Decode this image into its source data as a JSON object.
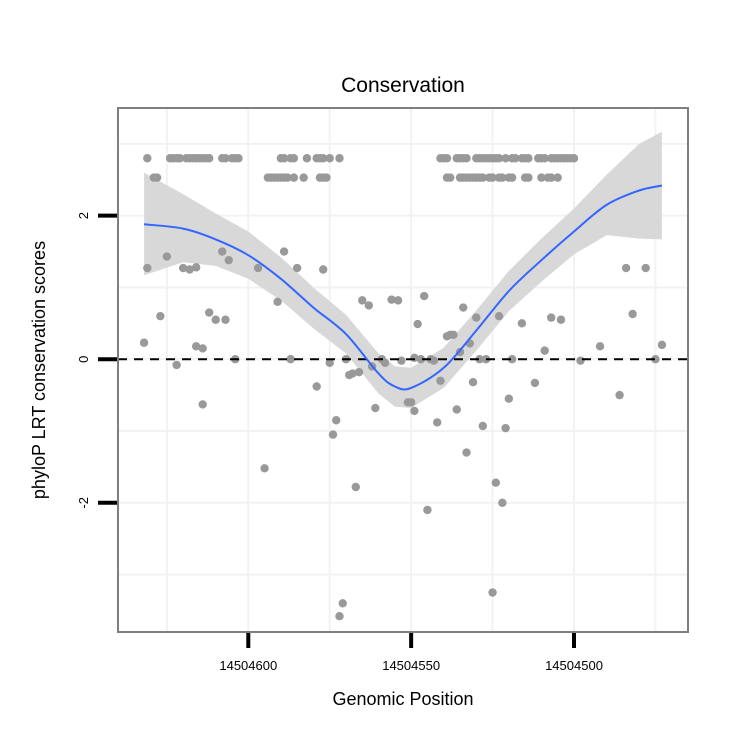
{
  "chart_data": {
    "type": "scatter",
    "title": "Conservation",
    "xlabel": "Genomic Position",
    "ylabel": "phyloP LRT conservation scores",
    "x_reversed": true,
    "xlim": [
      14504465,
      14504640
    ],
    "ylim": [
      -3.8,
      3.5
    ],
    "xticks": [
      14504600,
      14504550,
      14504500
    ],
    "xtick_labels": [
      "14504600",
      "14504550",
      "14504500"
    ],
    "yticks": [
      -2,
      0,
      2
    ],
    "ytick_labels": [
      "-2",
      "0",
      "2"
    ],
    "grid": true,
    "reference_line": {
      "y": 0,
      "style": "dashed",
      "color": "#000000"
    },
    "colors": {
      "points": "#999999",
      "smooth": "#3366ff",
      "ribbon": "#d6d6d6",
      "panel_border": "#7f7f7f",
      "grid": "#f2f2f2"
    },
    "points": [
      {
        "x": 14504631,
        "y": 2.8
      },
      {
        "x": 14504624,
        "y": 2.8
      },
      {
        "x": 14504623,
        "y": 2.8
      },
      {
        "x": 14504622,
        "y": 2.8
      },
      {
        "x": 14504621,
        "y": 2.8
      },
      {
        "x": 14504619,
        "y": 2.8
      },
      {
        "x": 14504618,
        "y": 2.8
      },
      {
        "x": 14504617,
        "y": 2.8
      },
      {
        "x": 14504616,
        "y": 2.8
      },
      {
        "x": 14504615,
        "y": 2.8
      },
      {
        "x": 14504614,
        "y": 2.8
      },
      {
        "x": 14504613,
        "y": 2.8
      },
      {
        "x": 14504612,
        "y": 2.8
      },
      {
        "x": 14504608,
        "y": 2.8
      },
      {
        "x": 14504607,
        "y": 2.8
      },
      {
        "x": 14504605,
        "y": 2.8
      },
      {
        "x": 14504604,
        "y": 2.8
      },
      {
        "x": 14504603,
        "y": 2.8
      },
      {
        "x": 14504590,
        "y": 2.8
      },
      {
        "x": 14504589,
        "y": 2.8
      },
      {
        "x": 14504587,
        "y": 2.8
      },
      {
        "x": 14504586,
        "y": 2.8
      },
      {
        "x": 14504582,
        "y": 2.8
      },
      {
        "x": 14504579,
        "y": 2.8
      },
      {
        "x": 14504578,
        "y": 2.8
      },
      {
        "x": 14504577,
        "y": 2.8
      },
      {
        "x": 14504575,
        "y": 2.8
      },
      {
        "x": 14504572,
        "y": 2.8
      },
      {
        "x": 14504629,
        "y": 2.53
      },
      {
        "x": 14504628,
        "y": 2.53
      },
      {
        "x": 14504594,
        "y": 2.53
      },
      {
        "x": 14504593,
        "y": 2.53
      },
      {
        "x": 14504592,
        "y": 2.53
      },
      {
        "x": 14504591,
        "y": 2.53
      },
      {
        "x": 14504590,
        "y": 2.53
      },
      {
        "x": 14504589,
        "y": 2.53
      },
      {
        "x": 14504588,
        "y": 2.53
      },
      {
        "x": 14504586,
        "y": 2.53
      },
      {
        "x": 14504583,
        "y": 2.53
      },
      {
        "x": 14504578,
        "y": 2.53
      },
      {
        "x": 14504577,
        "y": 2.53
      },
      {
        "x": 14504576,
        "y": 2.53
      },
      {
        "x": 14504541,
        "y": 2.8
      },
      {
        "x": 14504540,
        "y": 2.8
      },
      {
        "x": 14504539,
        "y": 2.8
      },
      {
        "x": 14504536,
        "y": 2.8
      },
      {
        "x": 14504535,
        "y": 2.8
      },
      {
        "x": 14504534,
        "y": 2.8
      },
      {
        "x": 14504533,
        "y": 2.8
      },
      {
        "x": 14504530,
        "y": 2.8
      },
      {
        "x": 14504529,
        "y": 2.8
      },
      {
        "x": 14504528,
        "y": 2.8
      },
      {
        "x": 14504527,
        "y": 2.8
      },
      {
        "x": 14504526,
        "y": 2.8
      },
      {
        "x": 14504525,
        "y": 2.8
      },
      {
        "x": 14504524,
        "y": 2.8
      },
      {
        "x": 14504523,
        "y": 2.8
      },
      {
        "x": 14504521,
        "y": 2.8
      },
      {
        "x": 14504519,
        "y": 2.8
      },
      {
        "x": 14504518,
        "y": 2.8
      },
      {
        "x": 14504516,
        "y": 2.8
      },
      {
        "x": 14504515,
        "y": 2.8
      },
      {
        "x": 14504514,
        "y": 2.8
      },
      {
        "x": 14504511,
        "y": 2.8
      },
      {
        "x": 14504510,
        "y": 2.8
      },
      {
        "x": 14504509,
        "y": 2.8
      },
      {
        "x": 14504507,
        "y": 2.8
      },
      {
        "x": 14504506,
        "y": 2.8
      },
      {
        "x": 14504505,
        "y": 2.8
      },
      {
        "x": 14504504,
        "y": 2.8
      },
      {
        "x": 14504503,
        "y": 2.8
      },
      {
        "x": 14504502,
        "y": 2.8
      },
      {
        "x": 14504501,
        "y": 2.8
      },
      {
        "x": 14504500,
        "y": 2.8
      },
      {
        "x": 14504539,
        "y": 2.53
      },
      {
        "x": 14504538,
        "y": 2.53
      },
      {
        "x": 14504535,
        "y": 2.53
      },
      {
        "x": 14504534,
        "y": 2.53
      },
      {
        "x": 14504533,
        "y": 2.53
      },
      {
        "x": 14504532,
        "y": 2.53
      },
      {
        "x": 14504531,
        "y": 2.53
      },
      {
        "x": 14504530,
        "y": 2.53
      },
      {
        "x": 14504529,
        "y": 2.53
      },
      {
        "x": 14504528,
        "y": 2.53
      },
      {
        "x": 14504526,
        "y": 2.53
      },
      {
        "x": 14504525,
        "y": 2.53
      },
      {
        "x": 14504523,
        "y": 2.53
      },
      {
        "x": 14504522,
        "y": 2.53
      },
      {
        "x": 14504520,
        "y": 2.53
      },
      {
        "x": 14504519,
        "y": 2.53
      },
      {
        "x": 14504515,
        "y": 2.53
      },
      {
        "x": 14504514,
        "y": 2.53
      },
      {
        "x": 14504510,
        "y": 2.53
      },
      {
        "x": 14504508,
        "y": 2.53
      },
      {
        "x": 14504507,
        "y": 2.53
      },
      {
        "x": 14504505,
        "y": 2.53
      },
      {
        "x": 14504631,
        "y": 1.27
      },
      {
        "x": 14504627,
        "y": 0.6
      },
      {
        "x": 14504632,
        "y": 0.23
      },
      {
        "x": 14504625,
        "y": 1.43
      },
      {
        "x": 14504622,
        "y": -0.08
      },
      {
        "x": 14504620,
        "y": 1.27
      },
      {
        "x": 14504618,
        "y": 1.25
      },
      {
        "x": 14504616,
        "y": 1.28
      },
      {
        "x": 14504616,
        "y": 0.18
      },
      {
        "x": 14504614,
        "y": -0.63
      },
      {
        "x": 14504614,
        "y": 0.15
      },
      {
        "x": 14504612,
        "y": 0.65
      },
      {
        "x": 14504610,
        "y": 0.55
      },
      {
        "x": 14504608,
        "y": 1.5
      },
      {
        "x": 14504607,
        "y": 0.55
      },
      {
        "x": 14504606,
        "y": 1.38
      },
      {
        "x": 14504604,
        "y": 0.0
      },
      {
        "x": 14504597,
        "y": 1.27
      },
      {
        "x": 14504595,
        "y": -1.52
      },
      {
        "x": 14504591,
        "y": 0.8
      },
      {
        "x": 14504589,
        "y": 1.5
      },
      {
        "x": 14504587,
        "y": 0.0
      },
      {
        "x": 14504585,
        "y": 1.27
      },
      {
        "x": 14504579,
        "y": -0.38
      },
      {
        "x": 14504577,
        "y": 1.25
      },
      {
        "x": 14504575,
        "y": -0.05
      },
      {
        "x": 14504574,
        "y": -1.05
      },
      {
        "x": 14504573,
        "y": -0.85
      },
      {
        "x": 14504572,
        "y": -3.58
      },
      {
        "x": 14504571,
        "y": -3.4
      },
      {
        "x": 14504570,
        "y": 0.0
      },
      {
        "x": 14504569,
        "y": -0.22
      },
      {
        "x": 14504568,
        "y": -0.2
      },
      {
        "x": 14504567,
        "y": -1.78
      },
      {
        "x": 14504566,
        "y": -0.18
      },
      {
        "x": 14504565,
        "y": 0.82
      },
      {
        "x": 14504563,
        "y": 0.75
      },
      {
        "x": 14504562,
        "y": -0.1
      },
      {
        "x": 14504561,
        "y": -0.68
      },
      {
        "x": 14504559,
        "y": 0.0
      },
      {
        "x": 14504558,
        "y": -0.05
      },
      {
        "x": 14504556,
        "y": 0.83
      },
      {
        "x": 14504554,
        "y": 0.82
      },
      {
        "x": 14504553,
        "y": -0.02
      },
      {
        "x": 14504551,
        "y": -0.6
      },
      {
        "x": 14504550,
        "y": -0.6
      },
      {
        "x": 14504549,
        "y": 0.02
      },
      {
        "x": 14504549,
        "y": -0.72
      },
      {
        "x": 14504548,
        "y": 0.49
      },
      {
        "x": 14504547,
        "y": 0.0
      },
      {
        "x": 14504546,
        "y": 0.88
      },
      {
        "x": 14504545,
        "y": -2.1
      },
      {
        "x": 14504544,
        "y": 0.0
      },
      {
        "x": 14504543,
        "y": -0.02
      },
      {
        "x": 14504542,
        "y": -0.88
      },
      {
        "x": 14504541,
        "y": -0.3
      },
      {
        "x": 14504539,
        "y": 0.32
      },
      {
        "x": 14504538,
        "y": 0.34
      },
      {
        "x": 14504537,
        "y": 0.34
      },
      {
        "x": 14504536,
        "y": -0.7
      },
      {
        "x": 14504535,
        "y": 0.1
      },
      {
        "x": 14504534,
        "y": 0.72
      },
      {
        "x": 14504533,
        "y": -1.3
      },
      {
        "x": 14504532,
        "y": 0.22
      },
      {
        "x": 14504531,
        "y": -0.32
      },
      {
        "x": 14504530,
        "y": 0.58
      },
      {
        "x": 14504529,
        "y": 0.0
      },
      {
        "x": 14504528,
        "y": -0.93
      },
      {
        "x": 14504527,
        "y": 0.0
      },
      {
        "x": 14504525,
        "y": -3.25
      },
      {
        "x": 14504524,
        "y": -1.72
      },
      {
        "x": 14504523,
        "y": 0.6
      },
      {
        "x": 14504522,
        "y": -2.0
      },
      {
        "x": 14504521,
        "y": -0.96
      },
      {
        "x": 14504520,
        "y": -0.55
      },
      {
        "x": 14504519,
        "y": 0.0
      },
      {
        "x": 14504516,
        "y": 0.5
      },
      {
        "x": 14504512,
        "y": -0.33
      },
      {
        "x": 14504509,
        "y": 0.12
      },
      {
        "x": 14504507,
        "y": 0.58
      },
      {
        "x": 14504504,
        "y": 0.55
      },
      {
        "x": 14504498,
        "y": -0.02
      },
      {
        "x": 14504492,
        "y": 0.18
      },
      {
        "x": 14504486,
        "y": -0.5
      },
      {
        "x": 14504484,
        "y": 1.27
      },
      {
        "x": 14504482,
        "y": 0.63
      },
      {
        "x": 14504478,
        "y": 1.27
      },
      {
        "x": 14504475,
        "y": 0.0
      },
      {
        "x": 14504473,
        "y": 0.2
      }
    ],
    "smooth": [
      {
        "x": 14504632,
        "y": 1.88,
        "lo": 1.17,
        "hi": 2.6
      },
      {
        "x": 14504620,
        "y": 1.82,
        "lo": 1.35,
        "hi": 2.3
      },
      {
        "x": 14504610,
        "y": 1.67,
        "lo": 1.3,
        "hi": 2.03
      },
      {
        "x": 14504600,
        "y": 1.45,
        "lo": 1.12,
        "hi": 1.78
      },
      {
        "x": 14504590,
        "y": 1.12,
        "lo": 0.82,
        "hi": 1.42
      },
      {
        "x": 14504580,
        "y": 0.72,
        "lo": 0.43,
        "hi": 1.0
      },
      {
        "x": 14504570,
        "y": 0.35,
        "lo": 0.08,
        "hi": 0.62
      },
      {
        "x": 14504560,
        "y": -0.2,
        "lo": -0.48,
        "hi": 0.08
      },
      {
        "x": 14504555,
        "y": -0.38,
        "lo": -0.66,
        "hi": -0.1
      },
      {
        "x": 14504550,
        "y": -0.4,
        "lo": -0.68,
        "hi": -0.12
      },
      {
        "x": 14504540,
        "y": -0.12,
        "lo": -0.4,
        "hi": 0.16
      },
      {
        "x": 14504530,
        "y": 0.4,
        "lo": 0.12,
        "hi": 0.68
      },
      {
        "x": 14504520,
        "y": 0.95,
        "lo": 0.67,
        "hi": 1.23
      },
      {
        "x": 14504510,
        "y": 1.38,
        "lo": 1.08,
        "hi": 1.68
      },
      {
        "x": 14504500,
        "y": 1.78,
        "lo": 1.46,
        "hi": 2.1
      },
      {
        "x": 14504490,
        "y": 2.15,
        "lo": 1.73,
        "hi": 2.57
      },
      {
        "x": 14504480,
        "y": 2.35,
        "lo": 1.68,
        "hi": 3.0
      },
      {
        "x": 14504473,
        "y": 2.42,
        "lo": 1.67,
        "hi": 3.17
      }
    ]
  }
}
